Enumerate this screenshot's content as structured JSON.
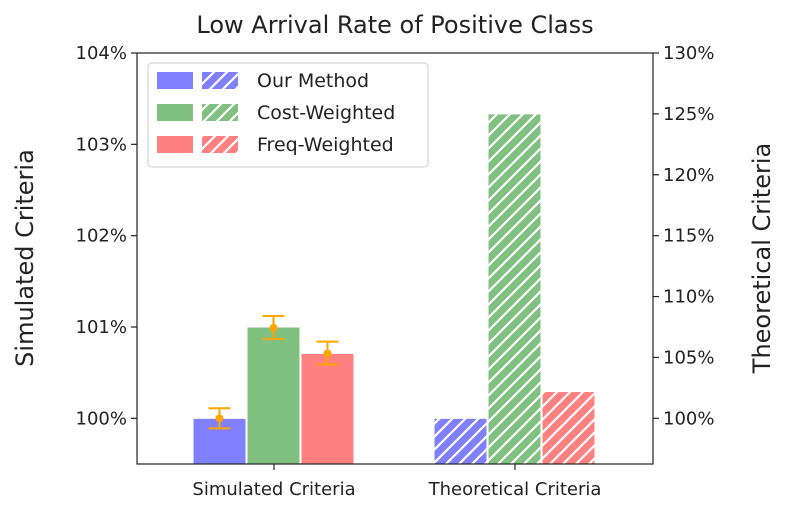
{
  "chart_data": {
    "type": "bar",
    "title": "Low Arrival Rate of Positive Class",
    "categories": [
      "Simulated Criteria",
      "Theoretical Criteria"
    ],
    "ylabel_left": "Simulated Criteria",
    "ylabel_right": "Theoretical Criteria",
    "yticks_left": [
      "100%",
      "101%",
      "102%",
      "103%",
      "104%"
    ],
    "yticks_right": [
      "100%",
      "105%",
      "110%",
      "115%",
      "120%",
      "125%",
      "130%"
    ],
    "ylim_left": [
      99.5,
      104
    ],
    "ylim_right": [
      96.25,
      130
    ],
    "left_tick_values": [
      100,
      101,
      102,
      103,
      104
    ],
    "right_tick_values": [
      100,
      105,
      110,
      115,
      120,
      125,
      130
    ],
    "series": [
      {
        "name": "Our Method",
        "color": "#8080ff",
        "simulated": 100.0,
        "simulated_error": [
          99.89,
          100.11
        ],
        "simulated_point": 100.0,
        "theoretical": 100.0
      },
      {
        "name": "Cost-Weighted",
        "color": "#80c080",
        "simulated": 101.0,
        "simulated_error": [
          100.87,
          101.12
        ],
        "simulated_point": 100.99,
        "theoretical": 125.0
      },
      {
        "name": "Freq-Weighted",
        "color": "#ff8080",
        "simulated": 100.71,
        "simulated_error": [
          100.59,
          100.84
        ],
        "simulated_point": 100.71,
        "theoretical": 102.2
      }
    ],
    "error_color": "#ffa500",
    "legend_position": "top-left"
  }
}
